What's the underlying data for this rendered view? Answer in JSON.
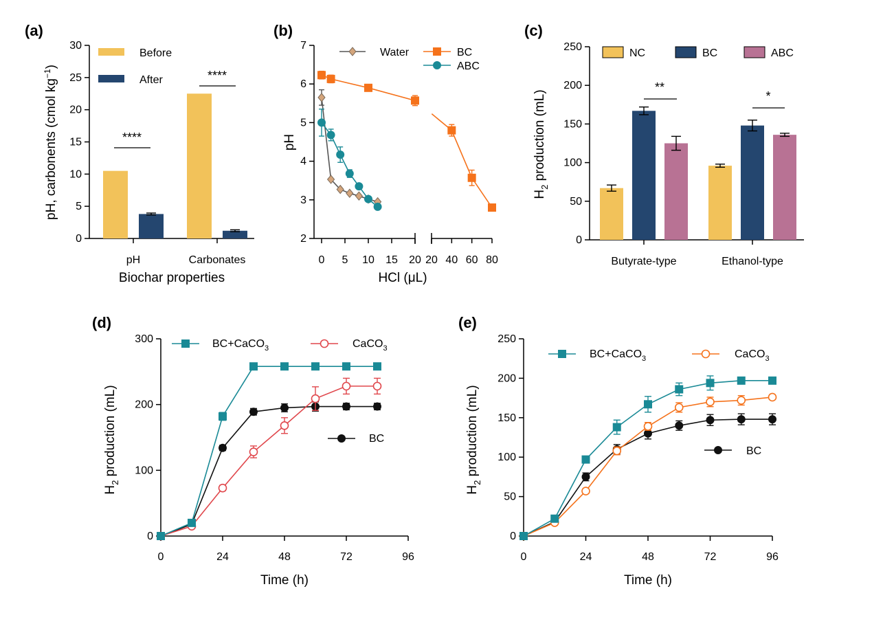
{
  "colors": {
    "before": "#F2C25A",
    "after": "#24466F",
    "nc": "#F2C25A",
    "bc_bar": "#24466F",
    "abc_bar": "#B87294",
    "water": "#D4A57C",
    "bc_line": "#F5721B",
    "abc_line": "#1A8A96",
    "bccaco3": "#1A8A96",
    "caco3_d": "#E0474C",
    "caco3_e": "#F5721B",
    "bc_black": "#111111"
  },
  "chart_data": [
    {
      "panel": "(a)",
      "type": "bar",
      "categories": [
        "pH",
        "Carbonates"
      ],
      "series": [
        {
          "name": "Before",
          "values": [
            10.5,
            22.5
          ],
          "errors": [
            0,
            0
          ]
        },
        {
          "name": "After",
          "values": [
            3.8,
            1.2
          ],
          "errors": [
            0.15,
            0.15
          ]
        }
      ],
      "xlabel": "Biochar properties",
      "ylabel": "pH, carbonents (cmol kg",
      "ylabel_sup": "−1",
      "ylabel_end": ")",
      "ylim": [
        0,
        30
      ],
      "yticks": [
        "0",
        "5",
        "10",
        "15",
        "20",
        "25",
        "30"
      ],
      "significance": [
        "****",
        "****"
      ],
      "legend_position": "top-left"
    },
    {
      "panel": "(b)",
      "type": "line",
      "xlabel": "HCl (μL)",
      "ylabel": "pH",
      "ylim": [
        2,
        7
      ],
      "yticks": [
        "2",
        "3",
        "4",
        "5",
        "6",
        "7"
      ],
      "xticks_left": [
        "0",
        "5",
        "10",
        "15",
        "20"
      ],
      "xticks_right": [
        "20",
        "40",
        "60",
        "80"
      ],
      "series": [
        {
          "name": "Water",
          "x": [
            0,
            2,
            4,
            6,
            8,
            10,
            12
          ],
          "y": [
            5.65,
            3.53,
            3.27,
            3.17,
            3.1,
            3.02,
            2.95
          ],
          "errors": [
            0.2,
            0,
            0,
            0,
            0,
            0,
            0
          ]
        },
        {
          "name": "BC",
          "x": [
            0,
            2,
            10,
            20,
            40,
            60,
            80
          ],
          "y": [
            6.23,
            6.13,
            5.9,
            5.57,
            4.8,
            3.57,
            2.8
          ],
          "errors": [
            0.1,
            0.1,
            0.05,
            0.13,
            0.15,
            0.2,
            0
          ]
        },
        {
          "name": "ABC",
          "x": [
            0,
            2,
            4,
            6,
            8,
            10,
            12
          ],
          "y": [
            5.0,
            4.68,
            4.17,
            3.68,
            3.35,
            3.02,
            2.82
          ],
          "errors": [
            0.35,
            0.15,
            0.2,
            0.1,
            0,
            0,
            0
          ]
        }
      ],
      "legend_position": "top"
    },
    {
      "panel": "(c)",
      "type": "bar",
      "categories": [
        "Butyrate-type",
        "Ethanol-type"
      ],
      "series": [
        {
          "name": "NC",
          "values": [
            67,
            96
          ],
          "errors": [
            4,
            2
          ]
        },
        {
          "name": "BC",
          "values": [
            167,
            148
          ],
          "errors": [
            5,
            7
          ]
        },
        {
          "name": "ABC",
          "values": [
            125,
            136
          ],
          "errors": [
            9,
            2
          ]
        }
      ],
      "ylabel": "H",
      "ylabel_sub": "2",
      "ylabel_end": " production (mL)",
      "ylim": [
        0,
        250
      ],
      "yticks": [
        "0",
        "50",
        "100",
        "150",
        "200",
        "250"
      ],
      "significance": [
        "**",
        "*"
      ],
      "legend_position": "top"
    },
    {
      "panel": "(d)",
      "type": "line",
      "xlabel": "Time (h)",
      "ylabel": "H",
      "ylabel_sub": "2",
      "ylabel_end": " production (mL)",
      "xlim": [
        0,
        96
      ],
      "ylim": [
        0,
        300
      ],
      "xticks": [
        "0",
        "24",
        "48",
        "72",
        "96"
      ],
      "yticks": [
        "0",
        "100",
        "200",
        "300"
      ],
      "x": [
        0,
        12,
        24,
        36,
        48,
        60,
        72,
        84
      ],
      "series": [
        {
          "name": "BC+CaCO",
          "sub": "3",
          "y": [
            0,
            20,
            182,
            258,
            258,
            258,
            258,
            258
          ],
          "errors": [
            0,
            3,
            6,
            0,
            0,
            0,
            0,
            0
          ]
        },
        {
          "name": "CaCO",
          "sub": "3",
          "y": [
            0,
            15,
            73,
            128,
            168,
            209,
            228,
            228
          ],
          "errors": [
            0,
            2,
            4,
            9,
            12,
            18,
            12,
            12
          ]
        },
        {
          "name": "BC",
          "sub": "",
          "y": [
            0,
            18,
            134,
            189,
            195,
            197,
            197,
            197
          ],
          "errors": [
            0,
            3,
            4,
            5,
            6,
            7,
            5,
            5
          ]
        }
      ]
    },
    {
      "panel": "(e)",
      "type": "line",
      "xlabel": "Time (h)",
      "ylabel": "H",
      "ylabel_sub": "2",
      "ylabel_end": " production (mL)",
      "xlim": [
        0,
        96
      ],
      "ylim": [
        0,
        250
      ],
      "xticks": [
        "0",
        "24",
        "48",
        "72",
        "96"
      ],
      "yticks": [
        "0",
        "50",
        "100",
        "150",
        "200",
        "250"
      ],
      "x": [
        0,
        12,
        24,
        36,
        48,
        60,
        72,
        84,
        96
      ],
      "series": [
        {
          "name": "BC+CaCO",
          "sub": "3",
          "y": [
            0,
            22,
            97,
            138,
            167,
            186,
            194,
            197,
            197
          ],
          "errors": [
            0,
            2,
            3,
            9,
            10,
            8,
            9,
            3,
            3
          ]
        },
        {
          "name": "CaCO",
          "sub": "3",
          "y": [
            0,
            17,
            57,
            108,
            139,
            163,
            170,
            172,
            176
          ],
          "errors": [
            0,
            2,
            3,
            5,
            5,
            6,
            6,
            6,
            3
          ]
        },
        {
          "name": "BC",
          "sub": "",
          "y": [
            0,
            18,
            75,
            110,
            130,
            140,
            147,
            148,
            148
          ],
          "errors": [
            0,
            2,
            5,
            6,
            7,
            6,
            7,
            7,
            7
          ]
        }
      ]
    }
  ]
}
